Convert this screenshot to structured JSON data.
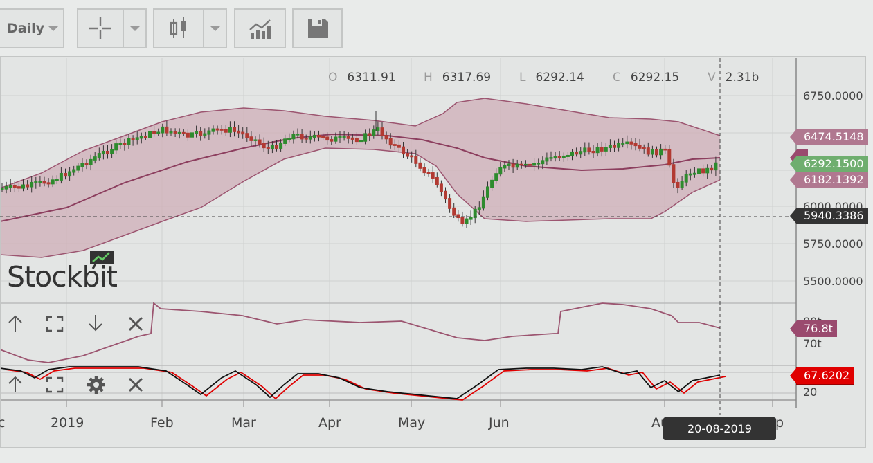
{
  "toolbar": {
    "interval_label": "Daily"
  },
  "ohlc": {
    "o_label": "O",
    "o_value": "6311.91",
    "h_label": "H",
    "h_value": "6317.69",
    "l_label": "L",
    "l_value": "6292.14",
    "c_label": "C",
    "c_value": "6292.15",
    "v_label": "V",
    "v_value": "2.31b"
  },
  "watermark": "Stockbit",
  "price_axis": {
    "ticks": [
      "6750.0000",
      "6000.0000",
      "5750.0000",
      "5500.0000"
    ],
    "tags": {
      "upper_band": "6474.5148",
      "last_price": "6292.1500",
      "lower_band": "6182.1392",
      "crosshair": "5940.3386"
    }
  },
  "volume_axis": {
    "ticks": [
      "80t",
      "70t"
    ],
    "tag": "76.8t"
  },
  "osc_axis": {
    "ticks": [
      "20"
    ],
    "tag": "67.6202"
  },
  "time_axis": {
    "ticks": [
      "c",
      "2019",
      "Feb",
      "Mar",
      "Apr",
      "May",
      "Jun",
      "Au",
      "p"
    ],
    "crosshair_date": "20-08-2019"
  },
  "colors": {
    "up": "#2e8b2e",
    "down": "#b23a32",
    "band_fill": "#cfaeb8",
    "band_line": "#9c5570",
    "tag_upper": "#b07890",
    "tag_last": "#6fae6f",
    "tag_crosshair": "#333333",
    "tag_volume": "#9a4a6e",
    "tag_osc": "#e00000"
  },
  "icons": {
    "pane_up": "arrow-up-icon",
    "pane_expand": "expand-icon",
    "pane_down": "arrow-down-icon",
    "pane_close": "close-icon",
    "pane_settings": "gear-icon"
  }
}
